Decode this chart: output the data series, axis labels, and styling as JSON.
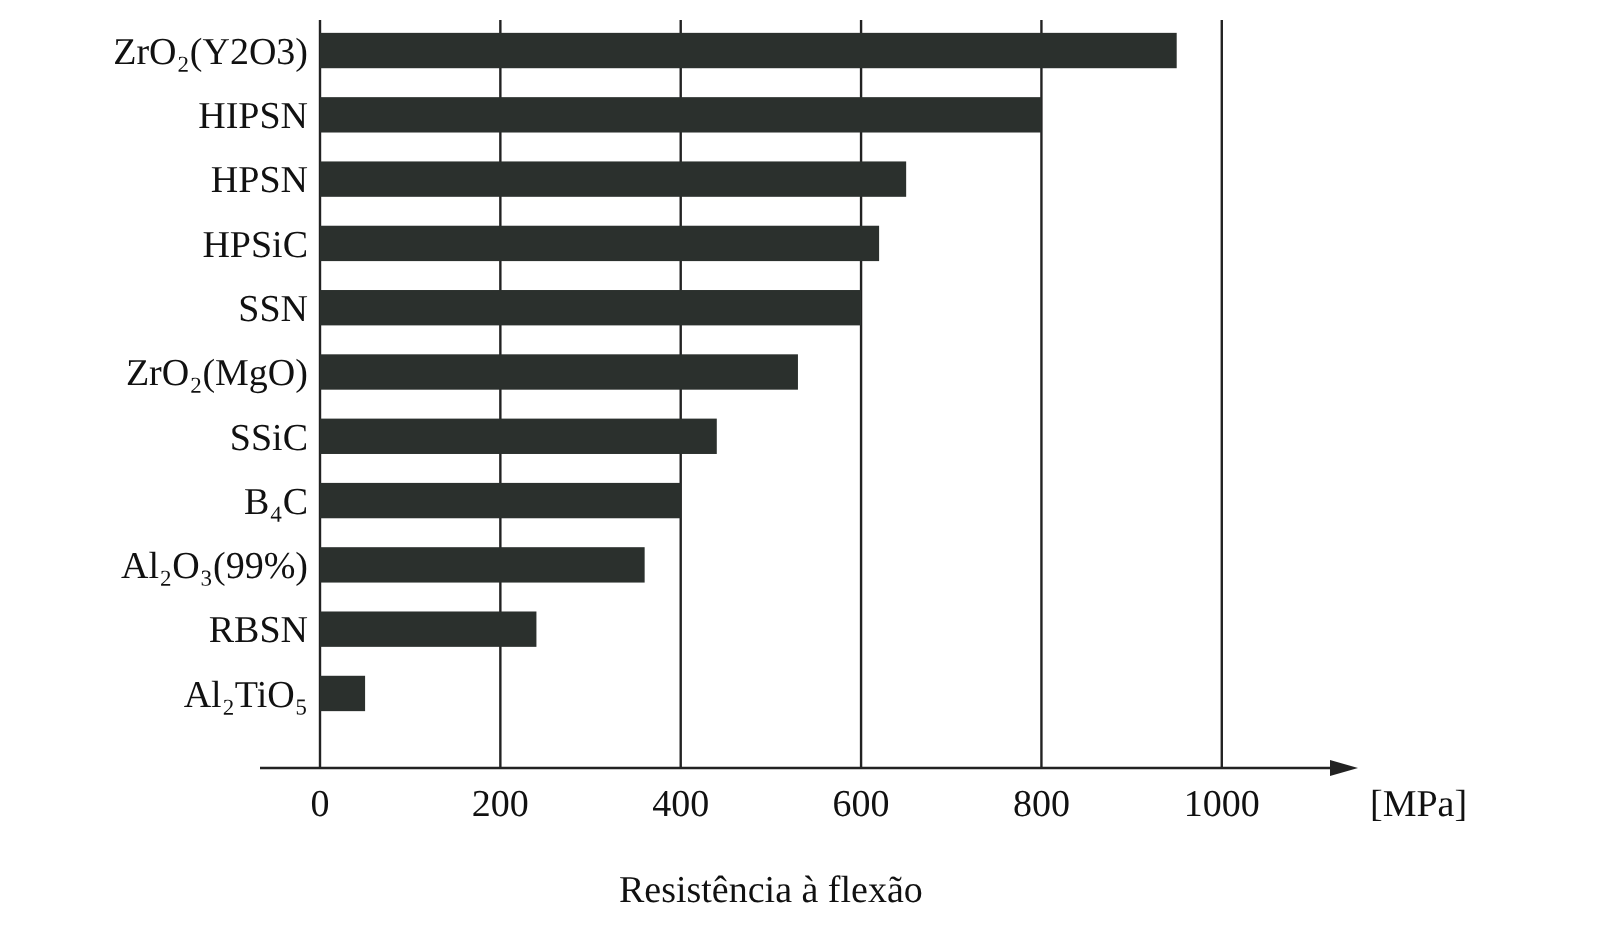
{
  "chart_data": {
    "type": "bar",
    "orientation": "horizontal",
    "xlabel": "Resistência à flexão",
    "annotations": [
      "[MPa]"
    ],
    "categories": [
      "ZrO₂(Y2O3)",
      "HIPSN",
      "HPSN",
      "HPSiC",
      "SSN",
      "ZrO₂(MgO)",
      "SSiC",
      "B₄C",
      "Al₂O₃(99%)",
      "RBSN",
      "Al₂TiO₅"
    ],
    "values": [
      950,
      800,
      650,
      620,
      600,
      530,
      440,
      400,
      360,
      240,
      50
    ],
    "color": "#2b302d",
    "xlim": [
      0,
      1120
    ],
    "xticks": [
      0,
      200,
      400,
      600,
      800,
      1000
    ],
    "grid": "x"
  }
}
